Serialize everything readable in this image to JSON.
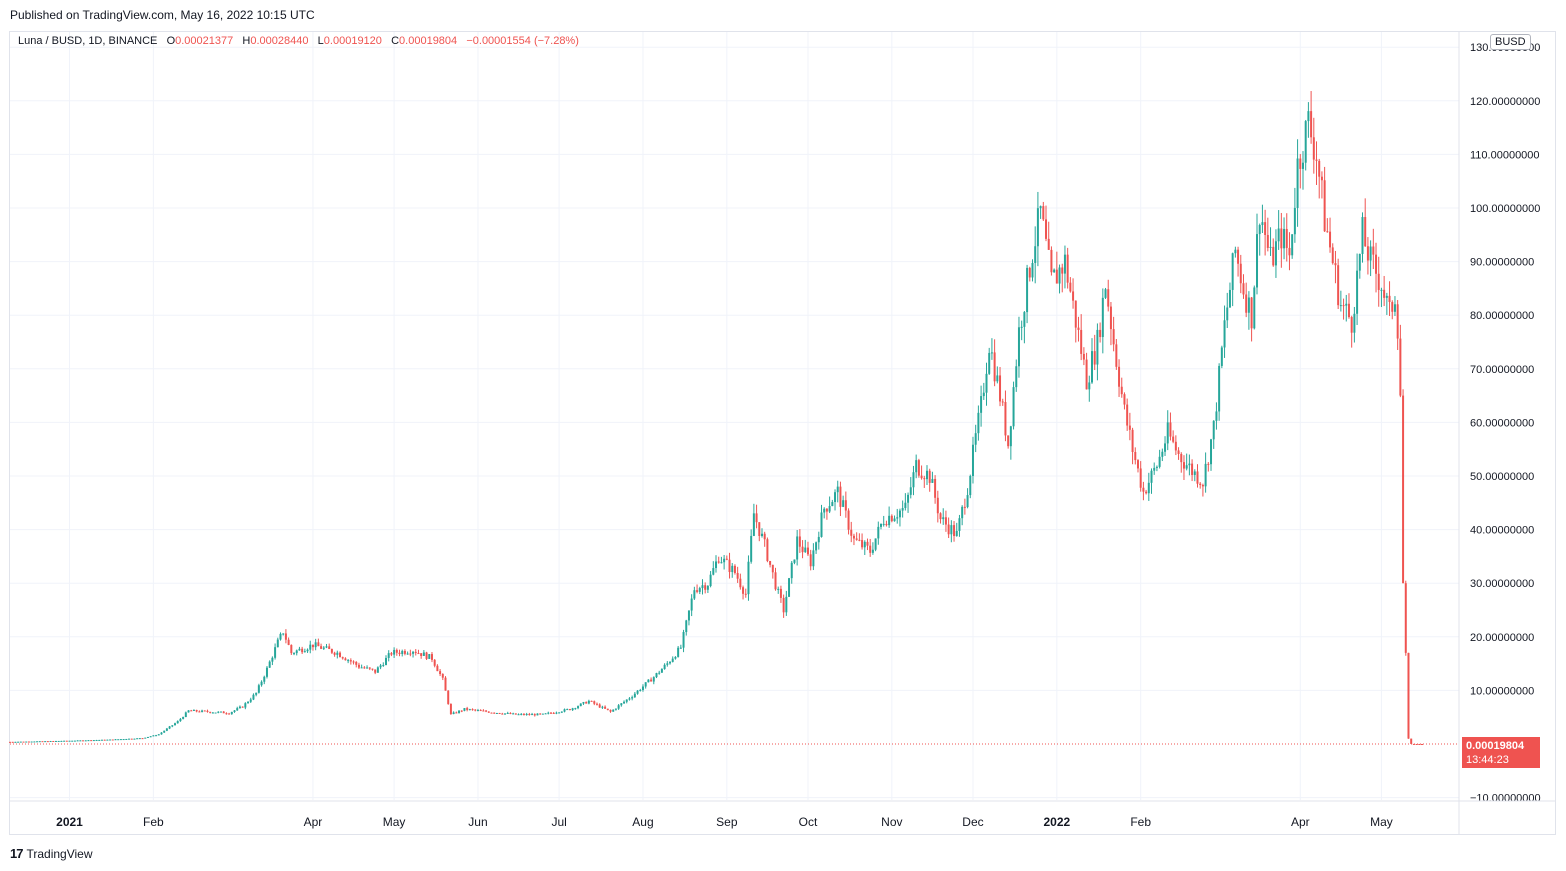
{
  "header": {
    "published": "Published on TradingView.com, May 16, 2022 10:15 UTC"
  },
  "legend": {
    "symbol": "Luna / BUSD, 1D, BINANCE",
    "o_label": "O",
    "o_value": "0.00021377",
    "h_label": "H",
    "h_value": "0.00028440",
    "l_label": "L",
    "l_value": "0.00019120",
    "c_label": "C",
    "c_value": "0.00019804",
    "change": "−0.00001554 (−7.28%)"
  },
  "currency_badge": "BUSD",
  "last_price": {
    "price": "0.00019804",
    "countdown": "13:44:23"
  },
  "footer": {
    "logo_mark": "17",
    "logo_text": "TradingView"
  },
  "colors": {
    "up": "#26a69a",
    "down": "#ef5350",
    "grid": "#f0f3fa",
    "axis_text": "#131722"
  },
  "chart_data": {
    "type": "candlestick",
    "title": "Luna / BUSD, 1D, BINANCE",
    "y_axis": {
      "ticks": [
        {
          "value": 130,
          "label": "130.00000000"
        },
        {
          "value": 120,
          "label": "120.00000000"
        },
        {
          "value": 110,
          "label": "110.00000000"
        },
        {
          "value": 100,
          "label": "100.00000000"
        },
        {
          "value": 90,
          "label": "90.00000000"
        },
        {
          "value": 80,
          "label": "80.00000000"
        },
        {
          "value": 70,
          "label": "70.00000000"
        },
        {
          "value": 60,
          "label": "60.00000000"
        },
        {
          "value": 50,
          "label": "50.00000000"
        },
        {
          "value": 40,
          "label": "40.00000000"
        },
        {
          "value": 30,
          "label": "30.00000000"
        },
        {
          "value": 20,
          "label": "20.00000000"
        },
        {
          "value": 10,
          "label": "10.00000000"
        },
        {
          "value": -10,
          "label": "−10.00000000"
        }
      ],
      "ylim": [
        -10,
        130
      ]
    },
    "x_axis": {
      "ticks": [
        {
          "date": "2021-01-01",
          "label": "2021",
          "bold": true
        },
        {
          "date": "2021-02-01",
          "label": "Feb"
        },
        {
          "date": "2021-04-01",
          "label": "Apr"
        },
        {
          "date": "2021-05-01",
          "label": "May"
        },
        {
          "date": "2021-06-01",
          "label": "Jun"
        },
        {
          "date": "2021-07-01",
          "label": "Jul"
        },
        {
          "date": "2021-08-01",
          "label": "Aug"
        },
        {
          "date": "2021-09-01",
          "label": "Sep"
        },
        {
          "date": "2021-10-01",
          "label": "Oct"
        },
        {
          "date": "2021-11-01",
          "label": "Nov"
        },
        {
          "date": "2021-12-01",
          "label": "Dec"
        },
        {
          "date": "2022-01-01",
          "label": "2022",
          "bold": true
        },
        {
          "date": "2022-02-01",
          "label": "Feb"
        },
        {
          "date": "2022-04-01",
          "label": "Apr"
        },
        {
          "date": "2022-05-01",
          "label": "May"
        }
      ],
      "xlim": [
        "2020-12-10",
        "2022-05-16"
      ]
    },
    "grid": true,
    "close_approx": [
      {
        "date": "2020-12-10",
        "close": 0.4
      },
      {
        "date": "2020-12-31",
        "close": 0.6
      },
      {
        "date": "2021-01-15",
        "close": 0.8
      },
      {
        "date": "2021-01-28",
        "close": 1.1
      },
      {
        "date": "2021-02-03",
        "close": 1.8
      },
      {
        "date": "2021-02-10",
        "close": 4.2
      },
      {
        "date": "2021-02-14",
        "close": 6.2
      },
      {
        "date": "2021-02-22",
        "close": 6.0
      },
      {
        "date": "2021-03-01",
        "close": 5.8
      },
      {
        "date": "2021-03-06",
        "close": 7.0
      },
      {
        "date": "2021-03-11",
        "close": 9.5
      },
      {
        "date": "2021-03-15",
        "close": 14.0
      },
      {
        "date": "2021-03-19",
        "close": 19.0
      },
      {
        "date": "2021-03-21",
        "close": 21.0
      },
      {
        "date": "2021-03-24",
        "close": 17.0
      },
      {
        "date": "2021-04-01",
        "close": 18.5
      },
      {
        "date": "2021-04-10",
        "close": 17.0
      },
      {
        "date": "2021-04-18",
        "close": 14.5
      },
      {
        "date": "2021-04-24",
        "close": 13.5
      },
      {
        "date": "2021-04-30",
        "close": 17.0
      },
      {
        "date": "2021-05-08",
        "close": 17.5
      },
      {
        "date": "2021-05-15",
        "close": 16.0
      },
      {
        "date": "2021-05-19",
        "close": 12.0
      },
      {
        "date": "2021-05-22",
        "close": 5.5
      },
      {
        "date": "2021-05-27",
        "close": 6.5
      },
      {
        "date": "2021-06-05",
        "close": 6.0
      },
      {
        "date": "2021-06-15",
        "close": 5.5
      },
      {
        "date": "2021-06-25",
        "close": 5.5
      },
      {
        "date": "2021-07-05",
        "close": 6.5
      },
      {
        "date": "2021-07-12",
        "close": 8.0
      },
      {
        "date": "2021-07-20",
        "close": 6.0
      },
      {
        "date": "2021-07-28",
        "close": 9.0
      },
      {
        "date": "2021-08-05",
        "close": 12.5
      },
      {
        "date": "2021-08-10",
        "close": 15.0
      },
      {
        "date": "2021-08-15",
        "close": 18.0
      },
      {
        "date": "2021-08-20",
        "close": 29.0
      },
      {
        "date": "2021-08-25",
        "close": 30.0
      },
      {
        "date": "2021-08-29",
        "close": 35.0
      },
      {
        "date": "2021-09-04",
        "close": 32.0
      },
      {
        "date": "2021-09-08",
        "close": 28.0
      },
      {
        "date": "2021-09-11",
        "close": 43.0
      },
      {
        "date": "2021-09-15",
        "close": 37.0
      },
      {
        "date": "2021-09-20",
        "close": 28.0
      },
      {
        "date": "2021-09-22",
        "close": 25.0
      },
      {
        "date": "2021-09-27",
        "close": 38.0
      },
      {
        "date": "2021-10-02",
        "close": 34.0
      },
      {
        "date": "2021-10-07",
        "close": 44.0
      },
      {
        "date": "2021-10-12",
        "close": 47.0
      },
      {
        "date": "2021-10-18",
        "close": 38.0
      },
      {
        "date": "2021-10-24",
        "close": 36.0
      },
      {
        "date": "2021-10-29",
        "close": 42.0
      },
      {
        "date": "2021-11-06",
        "close": 44.0
      },
      {
        "date": "2021-11-10",
        "close": 52.0
      },
      {
        "date": "2021-11-15",
        "close": 50.0
      },
      {
        "date": "2021-11-19",
        "close": 42.0
      },
      {
        "date": "2021-11-25",
        "close": 39.0
      },
      {
        "date": "2021-11-29",
        "close": 48.0
      },
      {
        "date": "2021-12-04",
        "close": 63.0
      },
      {
        "date": "2021-12-07",
        "close": 75.0
      },
      {
        "date": "2021-12-11",
        "close": 65.0
      },
      {
        "date": "2021-12-14",
        "close": 56.0
      },
      {
        "date": "2021-12-18",
        "close": 77.0
      },
      {
        "date": "2021-12-23",
        "close": 92.0
      },
      {
        "date": "2021-12-26",
        "close": 99.0
      },
      {
        "date": "2021-12-30",
        "close": 86.0
      },
      {
        "date": "2022-01-04",
        "close": 90.0
      },
      {
        "date": "2022-01-08",
        "close": 79.0
      },
      {
        "date": "2022-01-12",
        "close": 68.0
      },
      {
        "date": "2022-01-16",
        "close": 75.0
      },
      {
        "date": "2022-01-19",
        "close": 86.0
      },
      {
        "date": "2022-01-22",
        "close": 75.0
      },
      {
        "date": "2022-01-26",
        "close": 62.0
      },
      {
        "date": "2022-01-29",
        "close": 55.0
      },
      {
        "date": "2022-02-02",
        "close": 47.0
      },
      {
        "date": "2022-02-07",
        "close": 52.0
      },
      {
        "date": "2022-02-11",
        "close": 58.0
      },
      {
        "date": "2022-02-15",
        "close": 54.0
      },
      {
        "date": "2022-02-20",
        "close": 51.0
      },
      {
        "date": "2022-02-24",
        "close": 49.0
      },
      {
        "date": "2022-02-28",
        "close": 59.0
      },
      {
        "date": "2022-03-04",
        "close": 78.0
      },
      {
        "date": "2022-03-08",
        "close": 92.0
      },
      {
        "date": "2022-03-11",
        "close": 85.0
      },
      {
        "date": "2022-03-14",
        "close": 80.0
      },
      {
        "date": "2022-03-17",
        "close": 100.0
      },
      {
        "date": "2022-03-21",
        "close": 90.0
      },
      {
        "date": "2022-03-25",
        "close": 95.0
      },
      {
        "date": "2022-03-28",
        "close": 91.0
      },
      {
        "date": "2022-03-31",
        "close": 108.0
      },
      {
        "date": "2022-04-04",
        "close": 116.0
      },
      {
        "date": "2022-04-07",
        "close": 110.0
      },
      {
        "date": "2022-04-10",
        "close": 98.0
      },
      {
        "date": "2022-04-13",
        "close": 90.0
      },
      {
        "date": "2022-04-16",
        "close": 82.0
      },
      {
        "date": "2022-04-20",
        "close": 79.0
      },
      {
        "date": "2022-04-24",
        "close": 95.0
      },
      {
        "date": "2022-04-27",
        "close": 90.0
      },
      {
        "date": "2022-05-01",
        "close": 86.0
      },
      {
        "date": "2022-05-04",
        "close": 80.0
      },
      {
        "date": "2022-05-06",
        "close": 84.0
      },
      {
        "date": "2022-05-07",
        "close": 78.0
      },
      {
        "date": "2022-05-08",
        "close": 65.0
      },
      {
        "date": "2022-05-09",
        "close": 30.0
      },
      {
        "date": "2022-05-10",
        "close": 17.0
      },
      {
        "date": "2022-05-11",
        "close": 1.0
      },
      {
        "date": "2022-05-12",
        "close": 0.01
      },
      {
        "date": "2022-05-13",
        "close": 0.0003
      },
      {
        "date": "2022-05-16",
        "close": 0.0002
      }
    ],
    "last_close": 0.00019804
  }
}
